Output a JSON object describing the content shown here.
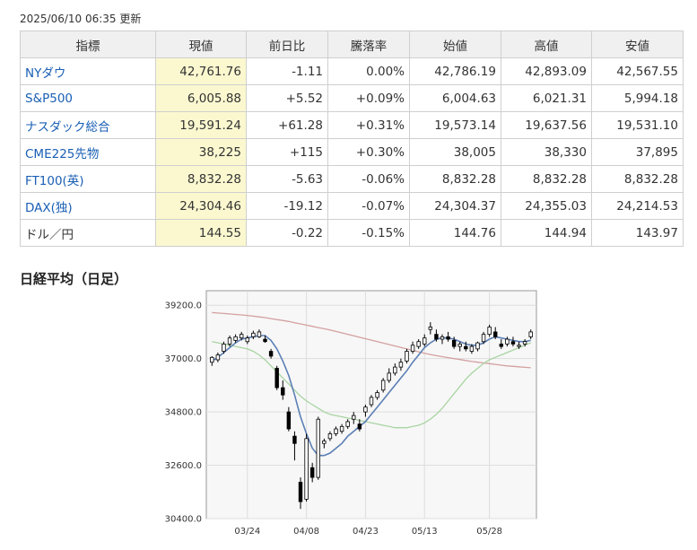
{
  "header": {
    "updated": "2025/06/10 06:35 更新"
  },
  "table": {
    "columns": [
      "指標",
      "現値",
      "前日比",
      "騰落率",
      "始値",
      "高値",
      "安値"
    ],
    "rows": [
      {
        "name": "NYダウ",
        "link": true,
        "current": "42,761.76",
        "change": "-1.11",
        "pct": "0.00%",
        "open": "42,786.19",
        "high": "42,893.09",
        "low": "42,567.55",
        "dir": "neg",
        "pct_dir": "zero"
      },
      {
        "name": "S&P500",
        "link": true,
        "current": "6,005.88",
        "change": "+5.52",
        "pct": "+0.09%",
        "open": "6,004.63",
        "high": "6,021.31",
        "low": "5,994.18",
        "dir": "pos",
        "pct_dir": "pos"
      },
      {
        "name": "ナスダック総合",
        "link": true,
        "current": "19,591.24",
        "change": "+61.28",
        "pct": "+0.31%",
        "open": "19,573.14",
        "high": "19,637.56",
        "low": "19,531.10",
        "dir": "pos",
        "pct_dir": "pos"
      },
      {
        "name": "CME225先物",
        "link": true,
        "current": "38,225",
        "change": "+115",
        "pct": "+0.30%",
        "open": "38,005",
        "high": "38,330",
        "low": "37,895",
        "dir": "pos",
        "pct_dir": "pos"
      },
      {
        "name": "FT100(英)",
        "link": true,
        "current": "8,832.28",
        "change": "-5.63",
        "pct": "-0.06%",
        "open": "8,832.28",
        "high": "8,832.28",
        "low": "8,832.28",
        "dir": "neg",
        "pct_dir": "neg"
      },
      {
        "name": "DAX(独)",
        "link": true,
        "current": "24,304.46",
        "change": "-19.12",
        "pct": "-0.07%",
        "open": "24,304.37",
        "high": "24,355.03",
        "low": "24,214.53",
        "dir": "neg",
        "pct_dir": "neg"
      },
      {
        "name": "ドル／円",
        "link": false,
        "current": "144.55",
        "change": "-0.22",
        "pct": "-0.15%",
        "open": "144.76",
        "high": "144.94",
        "low": "143.97",
        "dir": "neg",
        "pct_dir": "neg"
      }
    ]
  },
  "chart": {
    "title": "日経平均（日足）"
  },
  "chart_data": {
    "type": "candlestick",
    "title": "日経平均（日足）",
    "ylim": [
      30400,
      39800
    ],
    "y_ticks": [
      39200,
      37000,
      34800,
      32600,
      30400
    ],
    "y_tick_labels": [
      "39200.0",
      "37000.0",
      "34800.0",
      "32600.0",
      "30400.0"
    ],
    "x_ticks": [
      {
        "label": "03/24",
        "index": 6
      },
      {
        "label": "04/08",
        "index": 16
      },
      {
        "label": "04/23",
        "index": 26
      },
      {
        "label": "05/13",
        "index": 36
      },
      {
        "label": "05/28",
        "index": 47
      }
    ],
    "candles": [
      {
        "o": 36850,
        "h": 37100,
        "l": 36700,
        "c": 37050
      },
      {
        "o": 36950,
        "h": 37250,
        "l": 36850,
        "c": 37150
      },
      {
        "o": 37300,
        "h": 37700,
        "l": 37200,
        "c": 37600
      },
      {
        "o": 37600,
        "h": 37950,
        "l": 37500,
        "c": 37850
      },
      {
        "o": 37750,
        "h": 38000,
        "l": 37650,
        "c": 37900
      },
      {
        "o": 37850,
        "h": 38100,
        "l": 37750,
        "c": 38000
      },
      {
        "o": 37700,
        "h": 37950,
        "l": 37600,
        "c": 37850
      },
      {
        "o": 37900,
        "h": 38150,
        "l": 37800,
        "c": 38050
      },
      {
        "o": 37900,
        "h": 38200,
        "l": 37850,
        "c": 38100
      },
      {
        "o": 37800,
        "h": 37950,
        "l": 37650,
        "c": 37700
      },
      {
        "o": 37300,
        "h": 37400,
        "l": 37000,
        "c": 37100
      },
      {
        "o": 36600,
        "h": 36700,
        "l": 35700,
        "c": 35800
      },
      {
        "o": 35800,
        "h": 36100,
        "l": 35300,
        "c": 35500
      },
      {
        "o": 34800,
        "h": 35000,
        "l": 34000,
        "c": 34100
      },
      {
        "o": 33800,
        "h": 34000,
        "l": 32800,
        "c": 33500
      },
      {
        "o": 31900,
        "h": 32100,
        "l": 30800,
        "c": 31100
      },
      {
        "o": 31200,
        "h": 33900,
        "l": 31100,
        "c": 33700
      },
      {
        "o": 32500,
        "h": 32700,
        "l": 31900,
        "c": 32100
      },
      {
        "o": 32100,
        "h": 34600,
        "l": 32000,
        "c": 34500
      },
      {
        "o": 33500,
        "h": 33700,
        "l": 33300,
        "c": 33600
      },
      {
        "o": 33700,
        "h": 34000,
        "l": 33600,
        "c": 33900
      },
      {
        "o": 33900,
        "h": 34200,
        "l": 33800,
        "c": 34100
      },
      {
        "o": 34000,
        "h": 34300,
        "l": 33900,
        "c": 34200
      },
      {
        "o": 34200,
        "h": 34500,
        "l": 34100,
        "c": 34400
      },
      {
        "o": 34500,
        "h": 34800,
        "l": 34300,
        "c": 34650
      },
      {
        "o": 34300,
        "h": 34500,
        "l": 34000,
        "c": 34100
      },
      {
        "o": 34800,
        "h": 35100,
        "l": 34600,
        "c": 35000
      },
      {
        "o": 35100,
        "h": 35500,
        "l": 35000,
        "c": 35400
      },
      {
        "o": 35400,
        "h": 35700,
        "l": 35300,
        "c": 35600
      },
      {
        "o": 35700,
        "h": 36200,
        "l": 35600,
        "c": 36100
      },
      {
        "o": 36100,
        "h": 36600,
        "l": 36000,
        "c": 36400
      },
      {
        "o": 36400,
        "h": 36800,
        "l": 36300,
        "c": 36650
      },
      {
        "o": 36650,
        "h": 37000,
        "l": 36500,
        "c": 36850
      },
      {
        "o": 36900,
        "h": 37400,
        "l": 36800,
        "c": 37300
      },
      {
        "o": 37300,
        "h": 37700,
        "l": 37200,
        "c": 37550
      },
      {
        "o": 37500,
        "h": 37800,
        "l": 37400,
        "c": 37700
      },
      {
        "o": 37600,
        "h": 38000,
        "l": 37500,
        "c": 37850
      },
      {
        "o": 38200,
        "h": 38500,
        "l": 38000,
        "c": 38300
      },
      {
        "o": 38000,
        "h": 38200,
        "l": 37700,
        "c": 37800
      },
      {
        "o": 37800,
        "h": 38000,
        "l": 37600,
        "c": 37900
      },
      {
        "o": 37900,
        "h": 38100,
        "l": 37700,
        "c": 37800
      },
      {
        "o": 37750,
        "h": 37900,
        "l": 37400,
        "c": 37500
      },
      {
        "o": 37500,
        "h": 37700,
        "l": 37300,
        "c": 37600
      },
      {
        "o": 37500,
        "h": 37700,
        "l": 37300,
        "c": 37400
      },
      {
        "o": 37300,
        "h": 37600,
        "l": 37200,
        "c": 37500
      },
      {
        "o": 37400,
        "h": 37700,
        "l": 37300,
        "c": 37650
      },
      {
        "o": 37700,
        "h": 38100,
        "l": 37600,
        "c": 38000
      },
      {
        "o": 38000,
        "h": 38400,
        "l": 37900,
        "c": 38300
      },
      {
        "o": 38100,
        "h": 38300,
        "l": 37800,
        "c": 37900
      },
      {
        "o": 37600,
        "h": 37800,
        "l": 37400,
        "c": 37500
      },
      {
        "o": 37600,
        "h": 37900,
        "l": 37500,
        "c": 37800
      },
      {
        "o": 37700,
        "h": 37900,
        "l": 37500,
        "c": 37600
      },
      {
        "o": 37500,
        "h": 37700,
        "l": 37400,
        "c": 37550
      },
      {
        "o": 37600,
        "h": 37800,
        "l": 37500,
        "c": 37700
      },
      {
        "o": 37900,
        "h": 38200,
        "l": 37800,
        "c": 38100
      }
    ],
    "ma_short": [
      36900,
      37050,
      37250,
      37450,
      37650,
      37800,
      37850,
      37900,
      37950,
      37950,
      37750,
      37400,
      36900,
      36300,
      35500,
      34600,
      33900,
      33300,
      33000,
      33000,
      33100,
      33300,
      33500,
      33800,
      34000,
      34200,
      34400,
      34700,
      35000,
      35300,
      35600,
      35900,
      36200,
      36500,
      36850,
      37150,
      37450,
      37650,
      37800,
      37850,
      37850,
      37800,
      37700,
      37600,
      37550,
      37550,
      37650,
      37800,
      37900,
      37850,
      37800,
      37750,
      37700,
      37700,
      37750
    ],
    "ma_mid": [
      37700,
      37650,
      37600,
      37550,
      37500,
      37450,
      37400,
      37300,
      37150,
      36950,
      36700,
      36450,
      36200,
      35950,
      35700,
      35450,
      35250,
      35100,
      34950,
      34800,
      34700,
      34650,
      34600,
      34550,
      34500,
      34450,
      34400,
      34350,
      34300,
      34250,
      34200,
      34150,
      34150,
      34150,
      34200,
      34250,
      34350,
      34500,
      34700,
      34950,
      35250,
      35550,
      35850,
      36150,
      36400,
      36600,
      36800,
      36950,
      37050,
      37150,
      37250,
      37350,
      37450,
      37550,
      37650
    ],
    "ma_long": [
      38900,
      38880,
      38860,
      38840,
      38820,
      38800,
      38780,
      38750,
      38720,
      38690,
      38650,
      38610,
      38570,
      38530,
      38480,
      38430,
      38380,
      38330,
      38280,
      38230,
      38180,
      38120,
      38060,
      38000,
      37940,
      37880,
      37820,
      37760,
      37700,
      37640,
      37580,
      37520,
      37460,
      37400,
      37340,
      37280,
      37220,
      37170,
      37120,
      37080,
      37040,
      37000,
      36960,
      36920,
      36880,
      36850,
      36820,
      36790,
      36760,
      36730,
      36700,
      36680,
      36660,
      36640,
      36620
    ],
    "colors": {
      "up": "#ffffff",
      "down": "#000000",
      "ma_short": "#5b7fb5",
      "ma_mid": "#a8d4a2",
      "ma_long": "#d4a0a0"
    }
  }
}
